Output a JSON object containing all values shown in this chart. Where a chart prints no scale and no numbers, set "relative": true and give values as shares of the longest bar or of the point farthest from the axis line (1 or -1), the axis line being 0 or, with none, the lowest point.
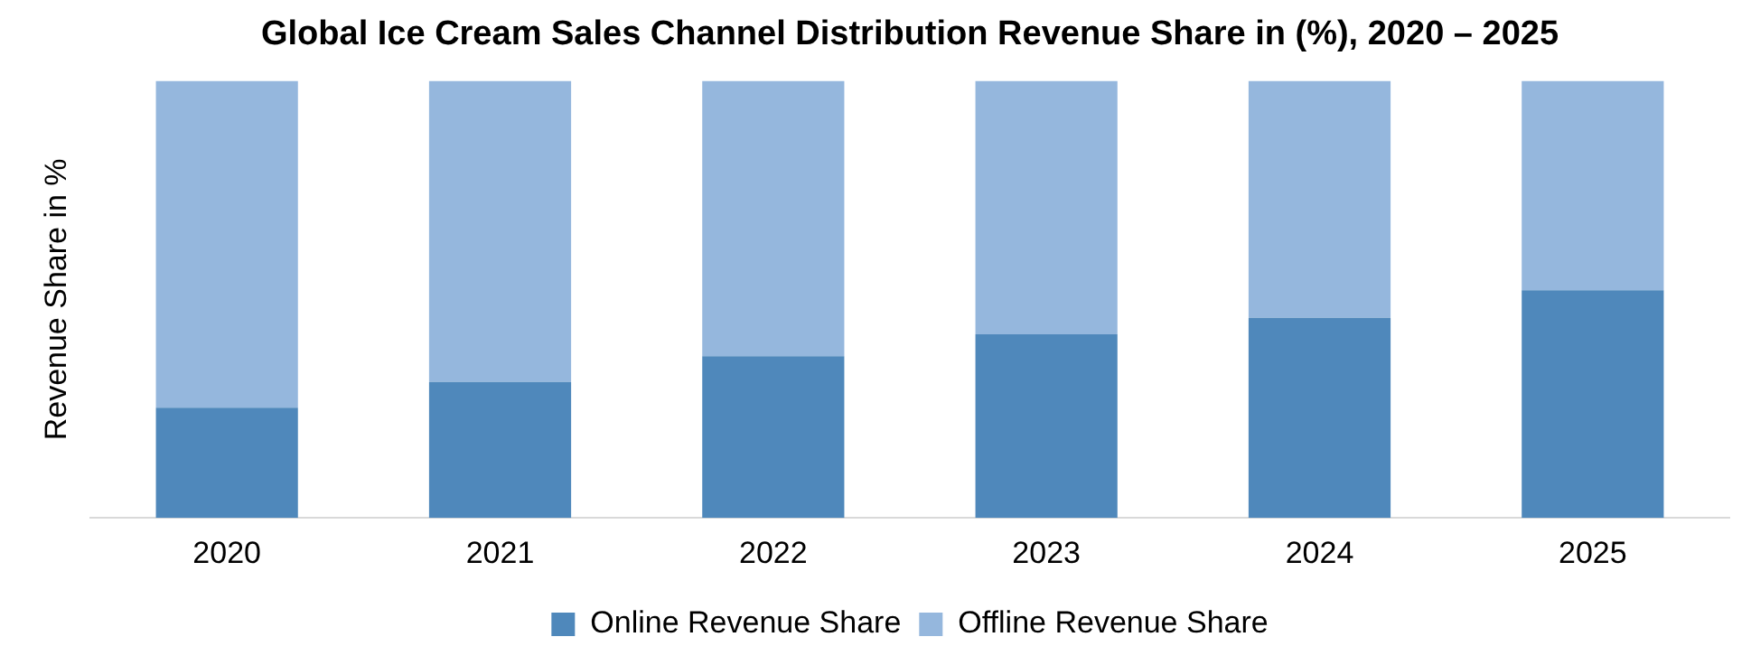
{
  "chart_data": {
    "type": "bar",
    "title": "Global Ice Cream Sales Channel Distribution Revenue Share in (%), 2020 – 2025",
    "ylabel": "Revenue Share in %",
    "categories": [
      "2020",
      "2021",
      "2022",
      "2023",
      "2024",
      "2025"
    ],
    "stacked": true,
    "relative": true,
    "legend": "bottom",
    "grid": false,
    "series": [
      {
        "name": "Online Revenue Share",
        "color": "#4f88bb",
        "values": [
          0.252,
          0.311,
          0.37,
          0.42,
          0.458,
          0.521
        ]
      },
      {
        "name": "Offline Revenue Share",
        "color": "#95b7dd",
        "values": [
          0.748,
          0.689,
          0.63,
          0.58,
          0.542,
          0.479
        ]
      }
    ]
  }
}
